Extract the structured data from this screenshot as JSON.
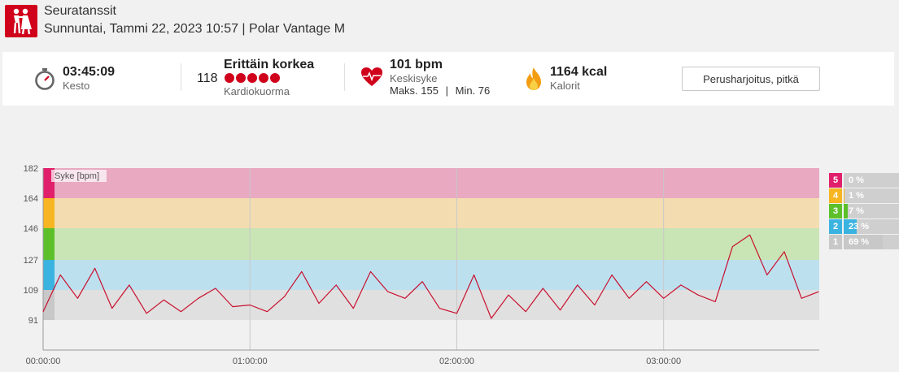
{
  "header": {
    "title": "Seuratanssit",
    "subtitle": "Sunnuntai, Tammi 22, 2023 10:57 | Polar Vantage M"
  },
  "summary": {
    "duration": {
      "value": "03:45:09",
      "label": "Kesto"
    },
    "cardio": {
      "score": "118",
      "level": "Erittäin korkea",
      "label": "Kardiokuorma",
      "dots": 5
    },
    "heart_rate": {
      "value": "101 bpm",
      "label": "Keskisyke",
      "max_label": "Maks. 155",
      "sep": "|",
      "min_label": "Min. 76"
    },
    "calories": {
      "value": "1164 kcal",
      "label": "Kalorit"
    },
    "benefit_button": "Perusharjoitus, pitkä"
  },
  "chart_data": {
    "type": "line",
    "ylabel": "Syke [bpm]",
    "yticks": [
      182,
      164,
      146,
      127,
      109,
      91
    ],
    "xticks": [
      "00:00:00",
      "01:00:00",
      "02:00:00",
      "03:00:00"
    ],
    "ylim": [
      73,
      182
    ],
    "xlim_seconds": [
      0,
      13509
    ],
    "zones": [
      {
        "zone": 5,
        "from": 164,
        "to": 182,
        "color": "#e8a9c1",
        "marker": "#e0206a",
        "percent": "0 %"
      },
      {
        "zone": 4,
        "from": 146,
        "to": 164,
        "color": "#f3ddb0",
        "marker": "#f6b521",
        "percent": "1 %"
      },
      {
        "zone": 3,
        "from": 127,
        "to": 146,
        "color": "#c9e4b5",
        "marker": "#5dc02b",
        "percent": "7 %"
      },
      {
        "zone": 2,
        "from": 109,
        "to": 127,
        "color": "#bde0ef",
        "marker": "#3bb3e0",
        "percent": "23 %"
      },
      {
        "zone": 1,
        "from": 91,
        "to": 109,
        "color": "#e0e0e0",
        "marker": "#c8c8c8",
        "percent": "69 %"
      }
    ],
    "zone_shares": [
      0,
      0.01,
      0.07,
      0.23,
      0.69
    ],
    "line_color": "#c8102e",
    "series": [
      {
        "time_min": [
          0,
          5,
          10,
          15,
          20,
          25,
          30,
          35,
          40,
          45,
          50,
          55,
          60,
          65,
          70,
          75,
          80,
          85,
          90,
          95,
          100,
          105,
          110,
          115,
          120,
          125,
          130,
          135,
          140,
          145,
          150,
          155,
          160,
          165,
          170,
          175,
          180,
          185,
          190,
          195,
          200,
          205,
          210,
          215,
          220,
          225
        ],
        "values": [
          96,
          118,
          104,
          122,
          98,
          112,
          95,
          103,
          96,
          104,
          110,
          99,
          100,
          96,
          105,
          120,
          101,
          112,
          98,
          120,
          108,
          104,
          114,
          98,
          95,
          118,
          92,
          106,
          96,
          110,
          97,
          112,
          100,
          118,
          104,
          114,
          104,
          112,
          106,
          102,
          135,
          142,
          118,
          132,
          104,
          108
        ]
      }
    ]
  }
}
